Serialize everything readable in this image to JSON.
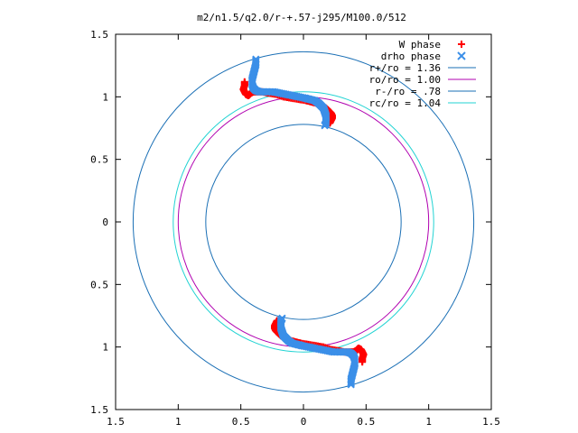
{
  "chart_data": {
    "type": "scatter",
    "title": "m2/n1.5/q2.0/r-+.57-j295/M100.0/512",
    "xlim": [
      -1.5,
      1.5
    ],
    "ylim": [
      -1.5,
      1.5
    ],
    "x_ticks": [
      -1.5,
      -1,
      -0.5,
      0,
      0.5,
      1,
      1.5
    ],
    "y_ticks": [
      1.5,
      1,
      0.5,
      0,
      -0.5,
      -1,
      -1.5
    ],
    "x_tick_labels": [
      "1.5",
      "1",
      "0.5",
      "0",
      "0.5",
      "1",
      "1.5"
    ],
    "y_tick_labels": [
      "1.5",
      "1",
      "0.5",
      "0",
      "0.5",
      "1",
      "1.5"
    ],
    "grid": false,
    "legend_position": "top-right",
    "circles": [
      {
        "name": "r+/ro = 1.36",
        "r": 1.36,
        "color": "#1a6fb5"
      },
      {
        "name": "ro/ro = 1.00",
        "r": 1.0,
        "color": "#b000b0"
      },
      {
        "name": "r-/ro = .78",
        "r": 0.78,
        "color": "#1a6fb5"
      },
      {
        "name": "rc/ro = 1.04",
        "r": 1.04,
        "color": "#22d3d3"
      }
    ],
    "series": [
      {
        "name": "W phase",
        "marker": "+",
        "color": "#ff0000",
        "x": [
          -0.47,
          -0.47,
          -0.48,
          -0.47,
          -0.46,
          -0.44,
          -0.43,
          -0.42,
          -0.4,
          -0.37,
          -0.33,
          -0.28,
          -0.22,
          -0.16,
          -0.1,
          -0.04,
          0.02,
          0.06,
          0.1,
          0.13,
          0.16,
          0.18,
          0.2,
          0.22,
          0.23,
          0.23,
          0.22,
          0.21,
          0.47,
          0.47,
          0.48,
          0.47,
          0.46,
          0.44,
          0.43,
          0.42,
          0.4,
          0.37,
          0.33,
          0.28,
          0.22,
          0.16,
          0.1,
          0.04,
          -0.02,
          -0.06,
          -0.1,
          -0.13,
          -0.16,
          -0.18,
          -0.2,
          -0.22,
          -0.23,
          -0.23,
          -0.22,
          -0.21
        ],
        "y": [
          1.12,
          1.09,
          1.06,
          1.04,
          1.02,
          1.01,
          1.02,
          1.03,
          1.04,
          1.04,
          1.04,
          1.03,
          1.02,
          1.0,
          0.99,
          0.98,
          0.97,
          0.96,
          0.95,
          0.94,
          0.92,
          0.91,
          0.89,
          0.87,
          0.85,
          0.83,
          0.81,
          0.79,
          -1.12,
          -1.09,
          -1.06,
          -1.04,
          -1.02,
          -1.01,
          -1.02,
          -1.03,
          -1.04,
          -1.04,
          -1.04,
          -1.03,
          -1.02,
          -1.0,
          -0.99,
          -0.98,
          -0.97,
          -0.96,
          -0.95,
          -0.94,
          -0.92,
          -0.91,
          -0.89,
          -0.87,
          -0.85,
          -0.83,
          -0.81,
          -0.79
        ]
      },
      {
        "name": "drho phase",
        "marker": "x",
        "color": "#3b8fe8",
        "x": [
          -0.38,
          -0.38,
          -0.39,
          -0.4,
          -0.41,
          -0.41,
          -0.4,
          -0.38,
          -0.35,
          -0.32,
          -0.28,
          -0.24,
          -0.19,
          -0.14,
          -0.09,
          -0.04,
          0.01,
          0.05,
          0.09,
          0.12,
          0.14,
          0.16,
          0.17,
          0.18,
          0.18,
          0.18,
          0.17,
          0.38,
          0.38,
          0.39,
          0.4,
          0.41,
          0.41,
          0.4,
          0.38,
          0.35,
          0.32,
          0.28,
          0.24,
          0.19,
          0.14,
          0.09,
          0.04,
          -0.01,
          -0.05,
          -0.09,
          -0.12,
          -0.14,
          -0.16,
          -0.17,
          -0.18,
          -0.18,
          -0.18,
          -0.17
        ],
        "y": [
          1.3,
          1.26,
          1.22,
          1.18,
          1.14,
          1.1,
          1.07,
          1.05,
          1.04,
          1.04,
          1.04,
          1.04,
          1.03,
          1.02,
          1.01,
          1.0,
          0.99,
          0.98,
          0.97,
          0.95,
          0.93,
          0.91,
          0.88,
          0.85,
          0.82,
          0.79,
          0.77,
          -1.3,
          -1.26,
          -1.22,
          -1.18,
          -1.14,
          -1.1,
          -1.07,
          -1.05,
          -1.04,
          -1.04,
          -1.04,
          -1.04,
          -1.03,
          -1.02,
          -1.01,
          -1.0,
          -0.99,
          -0.98,
          -0.97,
          -0.95,
          -0.93,
          -0.91,
          -0.88,
          -0.85,
          -0.82,
          -0.79,
          -0.77
        ]
      }
    ]
  }
}
